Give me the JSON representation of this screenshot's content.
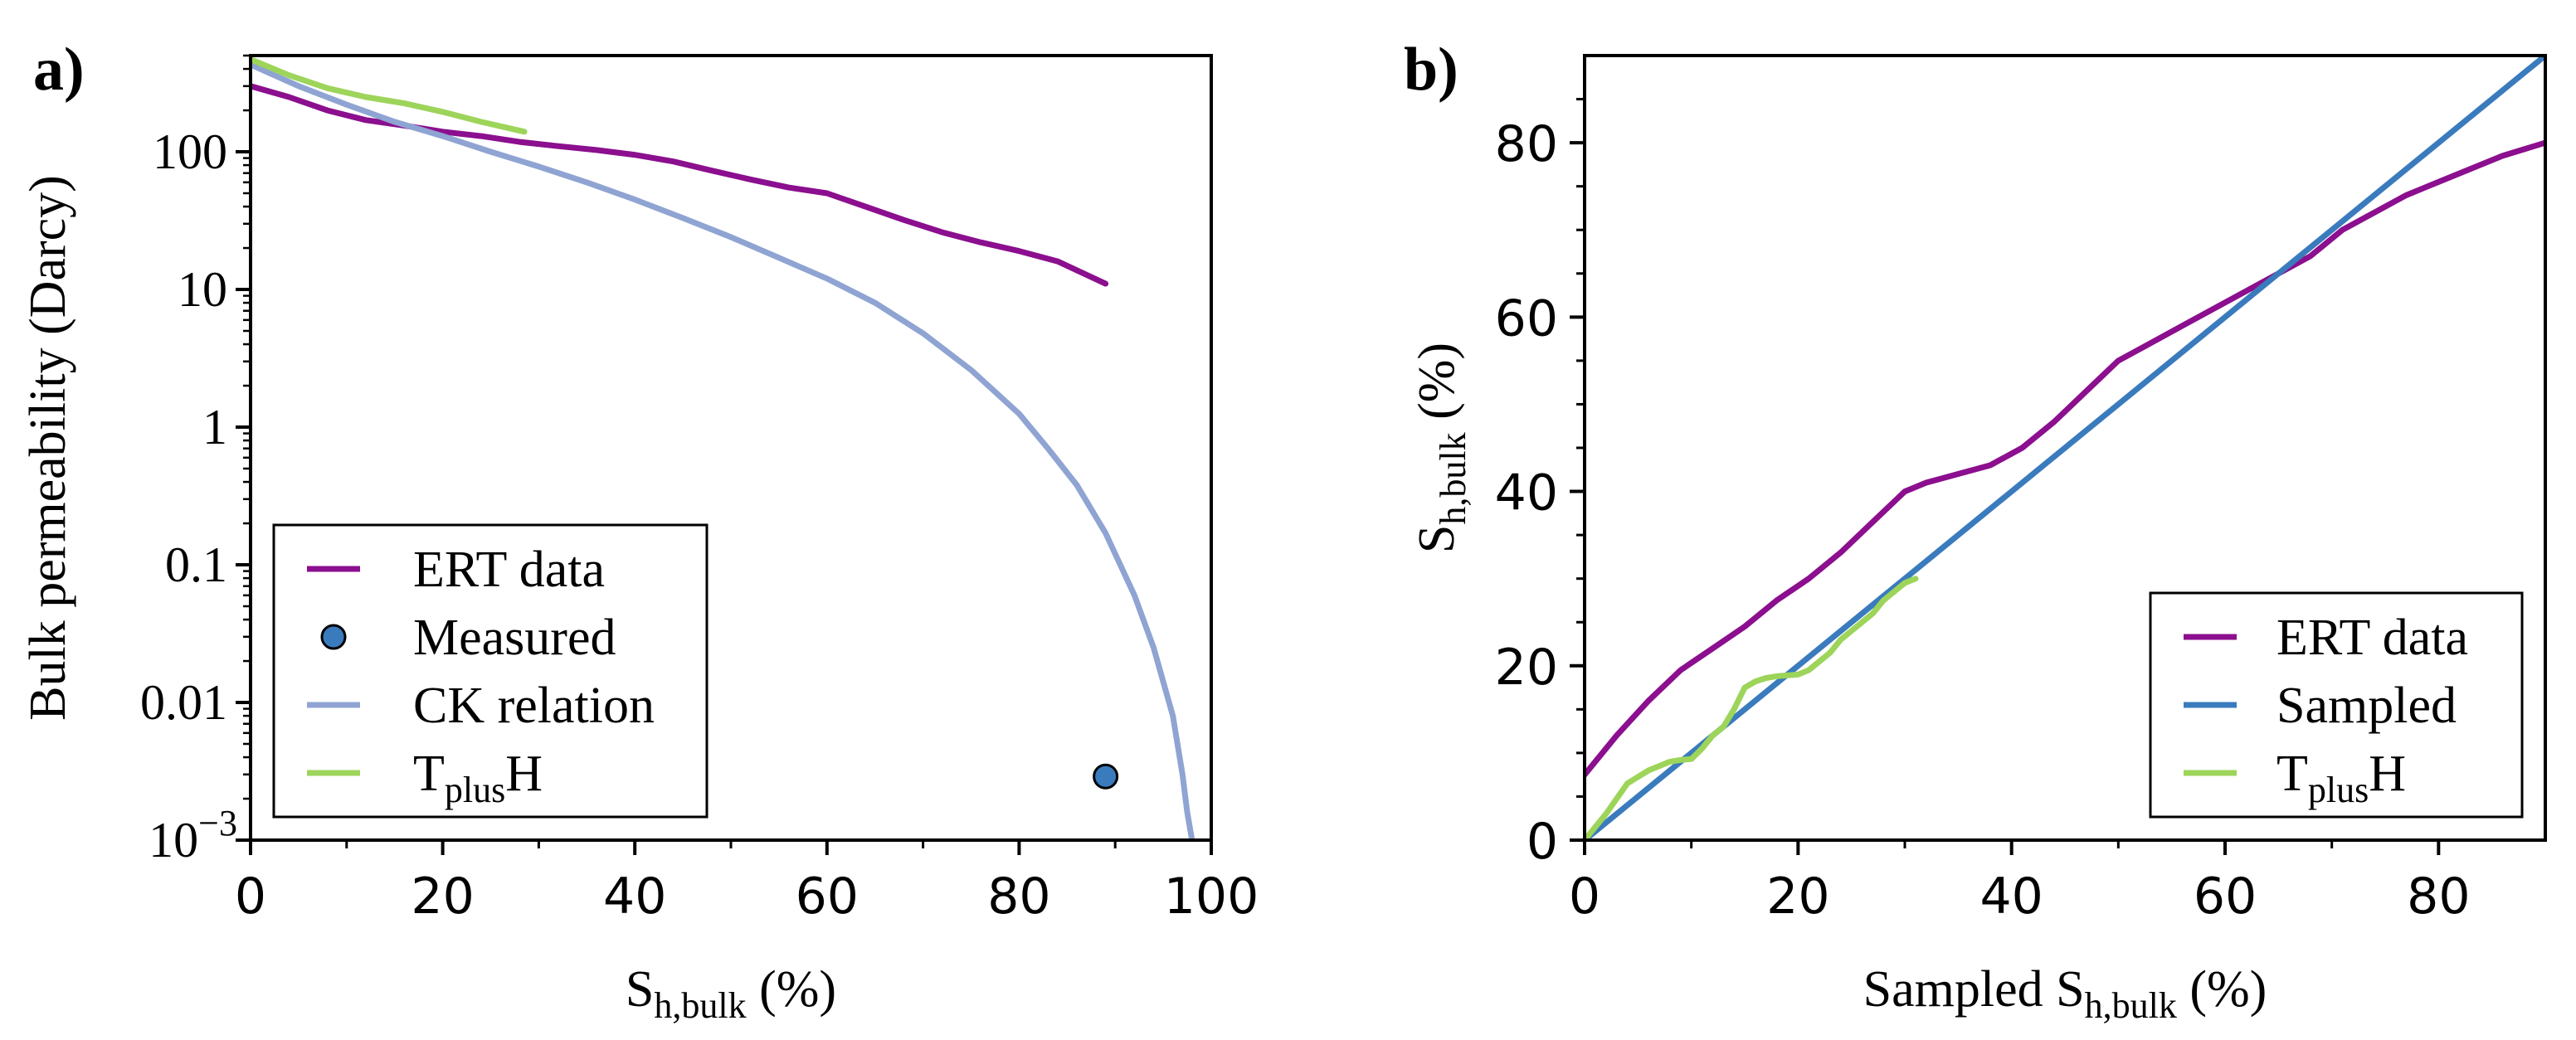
{
  "chart_data": [
    {
      "type": "line",
      "panel_label": "a)",
      "xlabel": {
        "main": "S",
        "sub": "h,bulk",
        "tail": " (%)"
      },
      "ylabel": "Bulk permeability (Darcy)",
      "yscale": "log",
      "xlim": [
        0,
        100
      ],
      "ylim": [
        0.001,
        500
      ],
      "xticks": [
        0,
        20,
        40,
        60,
        80,
        100
      ],
      "xtick_labels": [
        "0",
        "20",
        "40",
        "60",
        "80",
        "100"
      ],
      "yticks": [
        0.001,
        0.01,
        0.1,
        1,
        10,
        100
      ],
      "ytick_labels": [
        {
          "base": "10",
          "exp": "−3"
        },
        {
          "base": "0.01"
        },
        {
          "base": "0.1"
        },
        {
          "base": "1"
        },
        {
          "base": "10"
        },
        {
          "base": "100"
        }
      ],
      "legend_position": "lower-left",
      "series": [
        {
          "name": "ERT data",
          "legend": {
            "main": "ERT data",
            "sub": "",
            "tail": ""
          },
          "color": "#8b0f8e",
          "kind": "line",
          "x": [
            0,
            4,
            8,
            12,
            16,
            20,
            24,
            28,
            32,
            36,
            40,
            44,
            48,
            52,
            56,
            60,
            64,
            68,
            72,
            76,
            80,
            84,
            89
          ],
          "y": [
            300,
            250,
            200,
            170,
            155,
            140,
            130,
            118,
            110,
            103,
            95,
            85,
            73,
            63,
            55,
            50,
            40,
            32,
            26,
            22,
            19,
            16,
            11
          ]
        },
        {
          "name": "Measured",
          "legend": {
            "main": "Measured",
            "sub": "",
            "tail": ""
          },
          "color": "#3a7bbd",
          "kind": "marker",
          "x": [
            89
          ],
          "y": [
            0.0029
          ]
        },
        {
          "name": "CK relation",
          "legend": {
            "main": "CK relation",
            "sub": "",
            "tail": ""
          },
          "color": "#8fa4d2",
          "kind": "line",
          "x": [
            0,
            5,
            10,
            15,
            20,
            25,
            30,
            35,
            40,
            45,
            50,
            55,
            60,
            65,
            70,
            75,
            80,
            83,
            86,
            89,
            92,
            94,
            96,
            97,
            97.5,
            98
          ],
          "y": [
            430,
            300,
            220,
            165,
            130,
            100,
            78,
            60,
            45,
            33,
            24,
            17,
            12,
            8,
            4.8,
            2.6,
            1.25,
            0.7,
            0.38,
            0.17,
            0.06,
            0.025,
            0.008,
            0.003,
            0.0016,
            0.001
          ]
        },
        {
          "name": "TplusH",
          "legend": {
            "main": "T",
            "sub": "plus",
            "tail": "H"
          },
          "color": "#9dd45a",
          "kind": "line",
          "x": [
            0,
            4,
            8,
            12,
            16,
            20,
            24,
            28.5
          ],
          "y": [
            470,
            360,
            290,
            250,
            225,
            195,
            165,
            140
          ]
        }
      ]
    },
    {
      "type": "line",
      "panel_label": "b)",
      "xlabel": {
        "main": "Sampled S",
        "sub": "h,bulk",
        "tail": " (%)"
      },
      "ylabel": {
        "main": "S",
        "sub": "h,bulk",
        "tail": " (%)"
      },
      "yscale": "linear",
      "xlim": [
        0,
        90
      ],
      "ylim": [
        0,
        90
      ],
      "xticks": [
        0,
        20,
        40,
        60,
        80
      ],
      "xtick_labels": [
        "0",
        "20",
        "40",
        "60",
        "80"
      ],
      "yticks": [
        0,
        20,
        40,
        60,
        80
      ],
      "ytick_labels": [
        "0",
        "20",
        "40",
        "60",
        "80"
      ],
      "legend_position": "lower-right",
      "series": [
        {
          "name": "ERT data",
          "legend": {
            "main": "ERT data",
            "sub": "",
            "tail": ""
          },
          "color": "#8b0f8e",
          "kind": "line",
          "x": [
            0,
            3,
            6,
            9,
            12,
            15,
            18,
            21,
            24,
            27,
            30,
            32,
            35,
            38,
            41,
            44,
            47,
            50,
            53,
            56,
            59,
            62,
            65,
            68,
            71,
            74,
            77,
            80,
            83,
            86,
            90
          ],
          "y": [
            7.5,
            12,
            16,
            19.5,
            22,
            24.5,
            27.5,
            30,
            33,
            36.5,
            40,
            41,
            42,
            43,
            45,
            48,
            51.5,
            55,
            57,
            59,
            61,
            63,
            65,
            67,
            70,
            72,
            74,
            75.5,
            77,
            78.5,
            80
          ]
        },
        {
          "name": "Sampled",
          "legend": {
            "main": "Sampled",
            "sub": "",
            "tail": ""
          },
          "color": "#3a7bbd",
          "kind": "line",
          "x": [
            0,
            90
          ],
          "y": [
            0,
            90
          ]
        },
        {
          "name": "TplusH",
          "legend": {
            "main": "T",
            "sub": "plus",
            "tail": "H"
          },
          "color": "#9dd45a",
          "kind": "line",
          "x": [
            0,
            2,
            4,
            6,
            8,
            9,
            10,
            11,
            12,
            13,
            14,
            15,
            16,
            17,
            18,
            19,
            20,
            21,
            22,
            23,
            24,
            25,
            26,
            27,
            28,
            29,
            30,
            31
          ],
          "y": [
            0,
            3,
            6.5,
            8,
            9,
            9.2,
            9.3,
            10.5,
            12,
            13,
            15,
            17.5,
            18.2,
            18.6,
            18.8,
            18.9,
            19,
            19.5,
            20.5,
            21.5,
            23,
            24,
            25,
            26,
            27.5,
            28.5,
            29.5,
            30
          ]
        }
      ]
    }
  ]
}
